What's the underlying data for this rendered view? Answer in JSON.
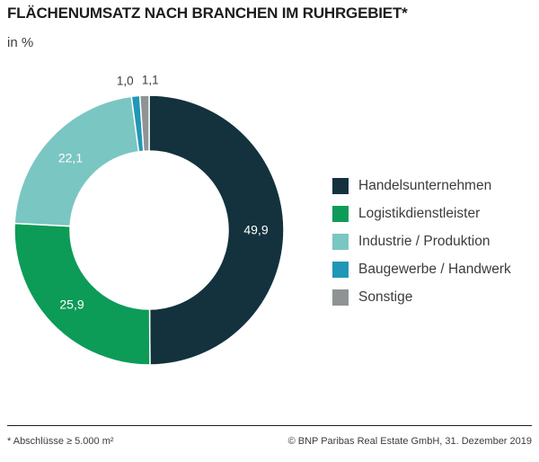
{
  "header": {
    "title": "FLÄCHENUMSATZ NACH BRANCHEN IM RUHRGEBIET*",
    "subtitle": "in %"
  },
  "footer": {
    "note": "* Abschlüsse ≥ 5.000 m²",
    "copyright": "© BNP Paribas Real Estate GmbH, 31. Dezember 2019"
  },
  "chart_data": {
    "type": "pie",
    "donut": true,
    "title": "FLÄCHENUMSATZ NACH BRANCHEN IM RUHRGEBIET*",
    "unit_label": "in %",
    "categories": [
      "Handelsunternehmen",
      "Logistikdienstleister",
      "Industrie / Produktion",
      "Baugewerbe / Handwerk",
      "Sonstige"
    ],
    "values": [
      49.9,
      25.9,
      22.1,
      1.0,
      1.1
    ],
    "value_labels": [
      "49,9",
      "25,9",
      "22,1",
      "1,0",
      "1,1"
    ],
    "colors": [
      "#13323d",
      "#0d9b58",
      "#7ac6c2",
      "#2097b6",
      "#8f9394"
    ],
    "start_angle_deg": 0,
    "clockwise": true,
    "legend_position": "right",
    "layout": {
      "center": [
        166,
        256
      ],
      "outer_radius": 150,
      "inner_radius": 88,
      "inside_label_min_value": 5,
      "outside_label_radius_offset": 17,
      "label_dx": [
        0,
        0,
        0,
        -10,
        7
      ],
      "inside_label_color": "#ffffff",
      "outside_label_color": "#3c3c3b",
      "inside_label_font_px": 14,
      "outside_label_font_px": 13.5,
      "separator_color": "#ffffff",
      "separator_width": 1.5
    }
  }
}
